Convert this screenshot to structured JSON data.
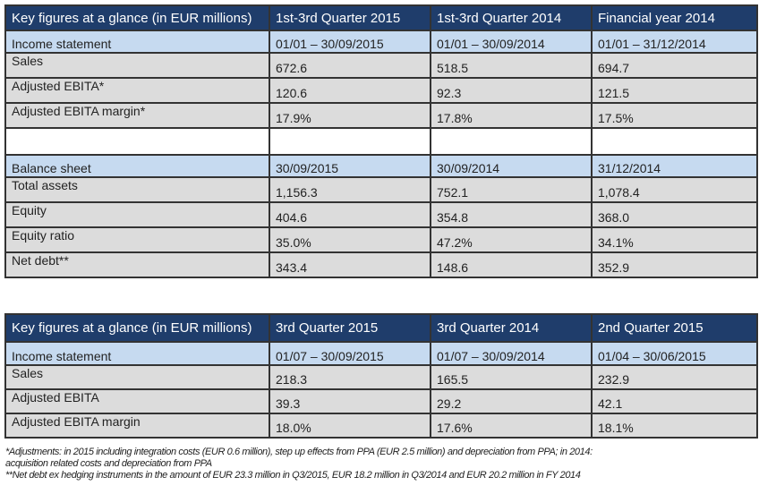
{
  "table1": {
    "header": [
      "Key figures at a glance (in EUR millions)",
      "1st-3rd Quarter 2015",
      "1st-3rd Quarter 2014",
      "Financial year 2014"
    ],
    "rows": [
      {
        "type": "sec",
        "cells": [
          "Income statement",
          "01/01 – 30/09/2015",
          "01/01 – 30/09/2014",
          "01/01 – 31/12/2014"
        ]
      },
      {
        "type": "row",
        "cells": [
          "Sales",
          "672.6",
          "518.5",
          "694.7"
        ]
      },
      {
        "type": "row",
        "cells": [
          "Adjusted EBITA*",
          "120.6",
          "92.3",
          "121.5"
        ]
      },
      {
        "type": "row",
        "cells": [
          "Adjusted EBITA margin*",
          "17.9%",
          "17.8%",
          "17.5%"
        ]
      },
      {
        "type": "blank",
        "cells": [
          "",
          "",
          "",
          ""
        ]
      },
      {
        "type": "sec",
        "cells": [
          "Balance sheet",
          "30/09/2015",
          "30/09/2014",
          "31/12/2014"
        ]
      },
      {
        "type": "row",
        "cells": [
          "Total assets",
          "1,156.3",
          "752.1",
          "1,078.4"
        ]
      },
      {
        "type": "row",
        "cells": [
          "Equity",
          "404.6",
          "354.8",
          "368.0"
        ]
      },
      {
        "type": "row",
        "cells": [
          "Equity ratio",
          "35.0%",
          "47.2%",
          "34.1%"
        ]
      },
      {
        "type": "row",
        "cells": [
          "Net debt**",
          "343.4",
          "148.6",
          "352.9"
        ]
      }
    ]
  },
  "table2": {
    "header": [
      "Key figures at a glance (in EUR millions)",
      "3rd Quarter 2015",
      "3rd Quarter 2014",
      "2nd Quarter 2015"
    ],
    "rows": [
      {
        "type": "sec",
        "cells": [
          "Income statement",
          "01/07 – 30/09/2015",
          "01/07 – 30/09/2014",
          "01/04 – 30/06/2015"
        ]
      },
      {
        "type": "row",
        "cells": [
          "Sales",
          "218.3",
          "165.5",
          "232.9"
        ]
      },
      {
        "type": "row",
        "cells": [
          "Adjusted EBITA",
          "39.3",
          "29.2",
          "42.1"
        ]
      },
      {
        "type": "row",
        "cells": [
          "Adjusted EBITA margin",
          "18.0%",
          "17.6%",
          "18.1%"
        ]
      }
    ]
  },
  "notes": [
    "*Adjustments: in 2015 including integration costs (EUR 0.6 million), step up effects from PPA (EUR 2.5 million) and depreciation from PPA; in 2014:",
    "acquisition related costs and depreciation from PPA",
    "**Net debt ex hedging instruments in the amount of EUR 23.3 million in Q3/2015, EUR 18.2 million in Q3/2014 and EUR 20.2 million in FY 2014"
  ]
}
